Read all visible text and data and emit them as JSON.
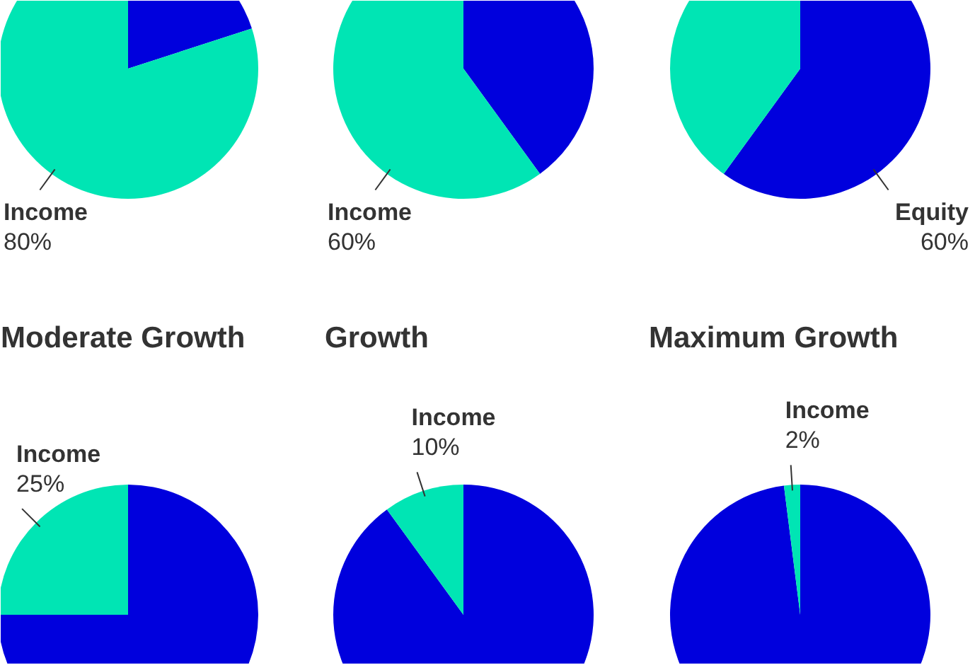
{
  "chart_data": [
    {
      "type": "pie",
      "categories": [
        null,
        "Income"
      ],
      "values": [
        20,
        80
      ],
      "colors": [
        "#0000dd",
        "#00e5b4"
      ],
      "value_labels": [
        null,
        "80%"
      ]
    },
    {
      "type": "pie",
      "categories": [
        null,
        "Income"
      ],
      "values": [
        40,
        60
      ],
      "colors": [
        "#0000dd",
        "#00e5b4"
      ],
      "value_labels": [
        null,
        "60%"
      ]
    },
    {
      "type": "pie",
      "categories": [
        "Equity",
        null
      ],
      "values": [
        60,
        40
      ],
      "colors": [
        "#0000dd",
        "#00e5b4"
      ],
      "value_labels": [
        "60%",
        null
      ]
    },
    {
      "type": "pie",
      "title": "Moderate Growth",
      "categories": [
        null,
        "Income"
      ],
      "values": [
        75,
        25
      ],
      "colors": [
        "#0000dd",
        "#00e5b4"
      ],
      "value_labels": [
        null,
        "25%"
      ]
    },
    {
      "type": "pie",
      "title": "Growth",
      "categories": [
        null,
        "Income"
      ],
      "values": [
        90,
        10
      ],
      "colors": [
        "#0000dd",
        "#00e5b4"
      ],
      "value_labels": [
        null,
        "10%"
      ]
    },
    {
      "type": "pie",
      "title": "Maximum Growth",
      "categories": [
        null,
        "Income"
      ],
      "values": [
        98,
        2
      ],
      "colors": [
        "#0000dd",
        "#00e5b4"
      ],
      "value_labels": [
        null,
        "2%"
      ]
    }
  ]
}
